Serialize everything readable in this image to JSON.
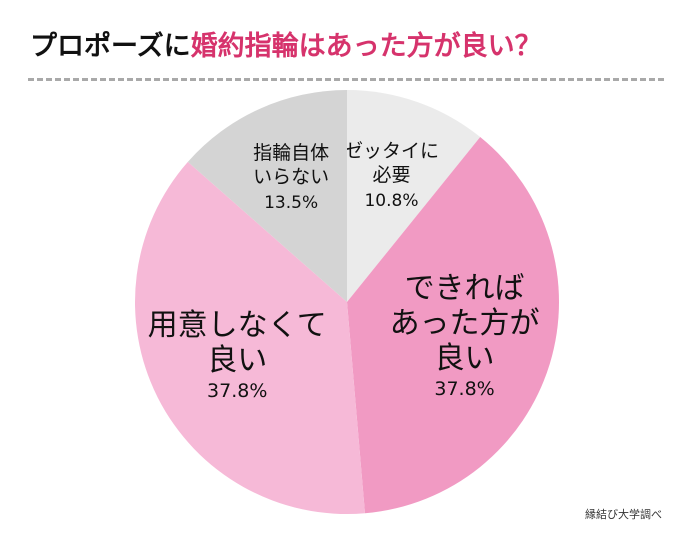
{
  "title": {
    "prefix": "プロポーズに",
    "accent": "婚約指輪はあった方が良い？"
  },
  "source": "縁結び大学調べ",
  "chart_data": {
    "type": "pie",
    "start_angle_deg": 0,
    "direction": "clockwise",
    "slices": [
      {
        "label": [
          "ゼッタイに",
          "必要"
        ],
        "value": 10.8,
        "value_text": "10.8%",
        "color": "#ebebeb"
      },
      {
        "label": [
          "できれば",
          "あった方が",
          "良い"
        ],
        "value": 37.8,
        "value_text": "37.8%",
        "color": "#f19ac3"
      },
      {
        "label": [
          "用意しなくて",
          "良い"
        ],
        "value": 37.8,
        "value_text": "37.8%",
        "color": "#f6b9d7"
      },
      {
        "label": [
          "指輪自体",
          "いらない"
        ],
        "value": 13.5,
        "value_text": "13.5%",
        "color": "#d4d4d4"
      }
    ]
  }
}
